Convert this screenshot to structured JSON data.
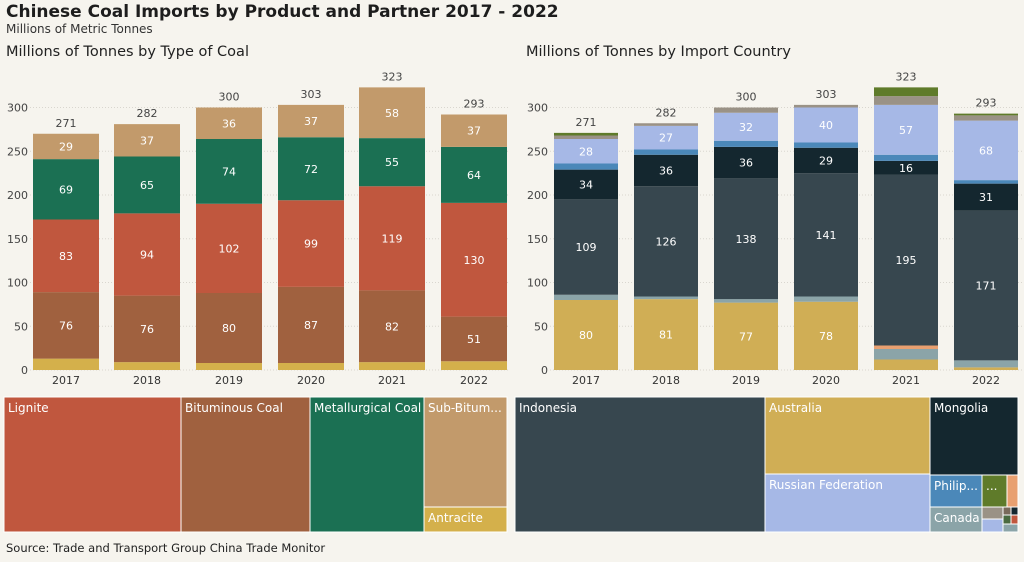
{
  "header": {
    "title": "Chinese Coal Imports by Product and Partner 2017 - 2022",
    "subtitle": "Millions of Metric Tonnes"
  },
  "footer": {
    "source": "Source: Trade and Transport Group China Trade Monitor"
  },
  "colors": {
    "background": "#f6f4ee",
    "Lignite": "#c0573e",
    "Bituminous Coal": "#a0613f",
    "Metallurgical Coal": "#1b7053",
    "Sub-Bituminous": "#c29a6b",
    "Antracite": "#d4b04b",
    "Indonesia": "#37474f",
    "Australia": "#d0ae55",
    "Mongolia": "#14272f",
    "Russian Federation": "#a6b8e6",
    "Philippines": "#4b88b9",
    "Canada": "#8ba4a8",
    "Other": "#5f7b2a"
  },
  "chart_data": [
    {
      "type": "bar",
      "stacked": true,
      "title": "Millions of Tonnes by Type of Coal",
      "categories": [
        "2017",
        "2018",
        "2019",
        "2020",
        "2021",
        "2022"
      ],
      "ylim": [
        0,
        320
      ],
      "yticks": [
        0,
        50,
        100,
        150,
        200,
        250,
        300
      ],
      "totals": [
        271,
        282,
        300,
        303,
        323,
        293
      ],
      "series": [
        {
          "name": "Antracite",
          "values": [
            13,
            9,
            8,
            8,
            9,
            10
          ],
          "labels": [
            false,
            false,
            false,
            false,
            false,
            false
          ]
        },
        {
          "name": "Bituminous Coal",
          "values": [
            76,
            76,
            80,
            87,
            82,
            51
          ],
          "labels": [
            true,
            true,
            true,
            true,
            true,
            true
          ]
        },
        {
          "name": "Lignite",
          "values": [
            83,
            94,
            102,
            99,
            119,
            130
          ],
          "labels": [
            true,
            true,
            true,
            true,
            true,
            true
          ]
        },
        {
          "name": "Metallurgical Coal",
          "values": [
            69,
            65,
            74,
            72,
            55,
            64
          ],
          "labels": [
            true,
            true,
            true,
            true,
            true,
            true
          ]
        },
        {
          "name": "Sub-Bituminous",
          "values": [
            29,
            37,
            36,
            37,
            58,
            37
          ],
          "labels": [
            true,
            true,
            true,
            true,
            true,
            true
          ]
        }
      ],
      "grid": true
    },
    {
      "type": "bar",
      "stacked": true,
      "title": "Millions of Tonnes by Import Country",
      "categories": [
        "2017",
        "2018",
        "2019",
        "2020",
        "2021",
        "2022"
      ],
      "ylim": [
        0,
        320
      ],
      "yticks": [
        0,
        50,
        100,
        150,
        200,
        250,
        300
      ],
      "totals": [
        271,
        282,
        300,
        303,
        323,
        293
      ],
      "series": [
        {
          "name": "Australia",
          "values": [
            80,
            81,
            77,
            78,
            12,
            3
          ],
          "labels": [
            true,
            true,
            true,
            true,
            false,
            false
          ]
        },
        {
          "name": "Canada",
          "values": [
            6,
            3,
            4,
            6,
            12,
            8
          ],
          "labels": [
            false,
            false,
            false,
            false,
            false,
            false
          ]
        },
        {
          "name": "Other",
          "values": [
            0,
            0,
            0,
            0,
            4,
            0
          ],
          "labels": [
            false,
            false,
            false,
            false,
            false,
            false
          ]
        },
        {
          "name": "Indonesia",
          "values": [
            109,
            126,
            138,
            141,
            195,
            171
          ],
          "labels": [
            true,
            true,
            true,
            true,
            true,
            true
          ]
        },
        {
          "name": "Mongolia",
          "values": [
            34,
            36,
            36,
            29,
            16,
            31
          ],
          "labels": [
            true,
            true,
            true,
            true,
            true,
            true
          ]
        },
        {
          "name": "Philippines",
          "values": [
            7,
            6,
            7,
            6,
            7,
            4
          ],
          "labels": [
            false,
            false,
            false,
            false,
            false,
            false
          ]
        },
        {
          "name": "Russian Federation",
          "values": [
            28,
            27,
            32,
            40,
            57,
            68
          ],
          "labels": [
            true,
            true,
            true,
            true,
            true,
            true
          ]
        },
        {
          "name": "Other",
          "values": [
            4,
            3,
            6,
            3,
            10,
            6
          ],
          "labels": [
            false,
            false,
            false,
            false,
            false,
            false
          ]
        },
        {
          "name": "Other",
          "values": [
            3,
            0,
            0,
            0,
            10,
            2
          ],
          "labels": [
            false,
            false,
            false,
            false,
            false,
            false
          ]
        }
      ],
      "series_colors": [
        "#d0ae55",
        "#8ba4a8",
        "#e8a070",
        "#37474f",
        "#14272f",
        "#4b88b9",
        "#a6b8e6",
        "#9a9286",
        "#5f7b2a"
      ],
      "grid": true
    },
    {
      "type": "treemap",
      "title": "",
      "items": [
        {
          "name": "Lignite",
          "label": "Lignite"
        },
        {
          "name": "Bituminous Coal",
          "label": "Bituminous Coal"
        },
        {
          "name": "Metallurgical Coal",
          "label": "Metallurgical Coal"
        },
        {
          "name": "Sub-Bituminous",
          "label": "Sub-Bitum..."
        },
        {
          "name": "Antracite",
          "label": "Antracite"
        }
      ]
    },
    {
      "type": "treemap",
      "title": "",
      "items": [
        {
          "name": "Indonesia",
          "label": "Indonesia"
        },
        {
          "name": "Australia",
          "label": "Australia"
        },
        {
          "name": "Mongolia",
          "label": "Mongolia"
        },
        {
          "name": "Russian Federation",
          "label": "Russian Federation"
        },
        {
          "name": "Philippines",
          "label": "Philip..."
        },
        {
          "name": "Canada",
          "label": "Canada"
        },
        {
          "name": "Other",
          "label": "..."
        }
      ]
    }
  ]
}
